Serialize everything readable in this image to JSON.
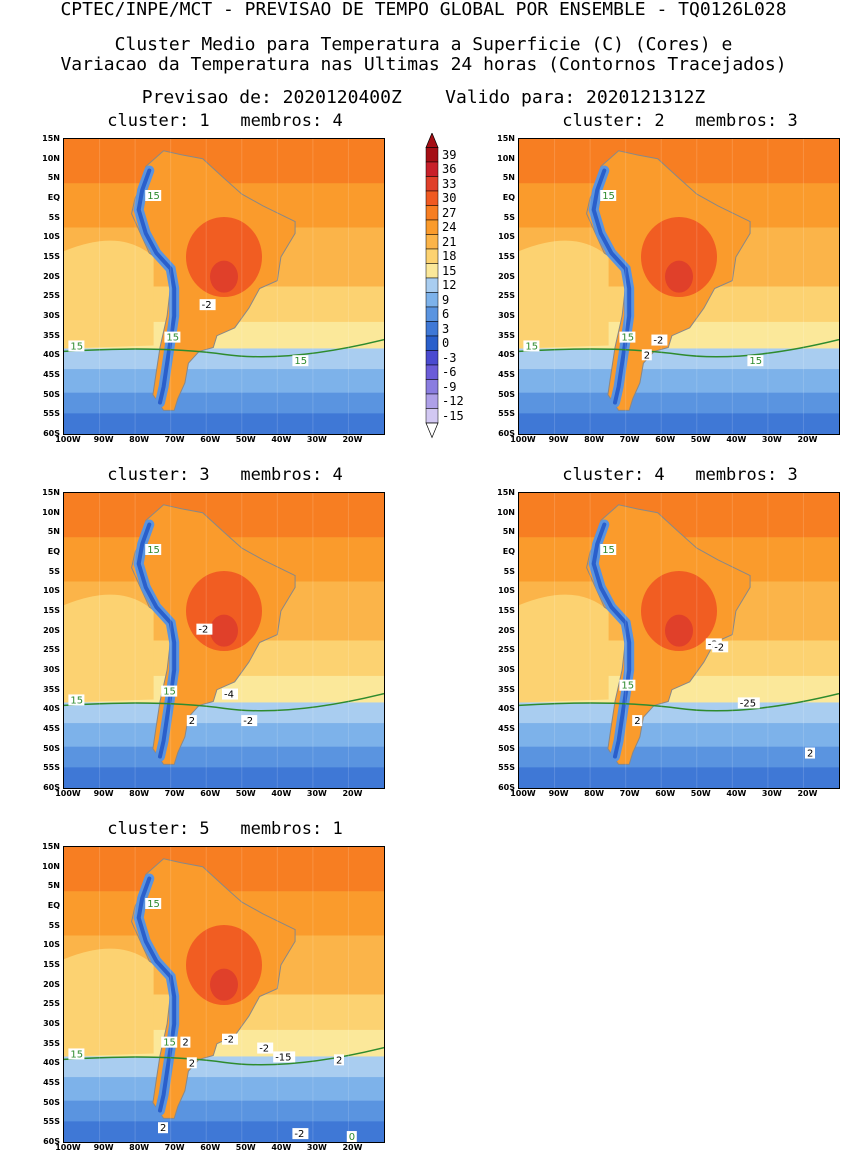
{
  "header": {
    "line1": "CPTEC/INPE/MCT - PREVISAO DE TEMPO GLOBAL POR ENSEMBLE - TQ0126L028",
    "line2": "Cluster Medio para Temperatura a Superficie (C) (Cores) e",
    "line3": "Variacao da Temperatura nas Ultimas 24 horas (Contornos Tracejados)",
    "line4": "Previsao de: 2020120400Z    Valido para: 2020121312Z"
  },
  "lat_labels": [
    "15N",
    "10N",
    "5N",
    "EQ",
    "5S",
    "10S",
    "15S",
    "20S",
    "25S",
    "30S",
    "35S",
    "40S",
    "45S",
    "50S",
    "55S",
    "60S"
  ],
  "lon_labels": [
    "100W",
    "90W",
    "80W",
    "70W",
    "60W",
    "50W",
    "40W",
    "30W",
    "20W"
  ],
  "colorbar": {
    "labels": [
      "39",
      "36",
      "33",
      "30",
      "27",
      "24",
      "21",
      "18",
      "15",
      "12",
      "9",
      "6",
      "3",
      "0",
      "-3",
      "-6",
      "-9",
      "-12",
      "-15"
    ],
    "colors": [
      "#a50f15",
      "#c8202a",
      "#e0402a",
      "#f05a22",
      "#f77e22",
      "#fa9b2c",
      "#fbb449",
      "#fcd271",
      "#fbe89a",
      "#a9cdf0",
      "#7db2ea",
      "#5a94e0",
      "#3f78d6",
      "#2a5fcb",
      "#4a4ad0",
      "#6b5cd8",
      "#8a7de0",
      "#aea0e8",
      "#d2c8f2"
    ]
  },
  "panels": [
    {
      "title": "cluster: 1   membros: 4",
      "labels": [
        "15",
        "15",
        "15",
        "15",
        "-2"
      ]
    },
    {
      "title": "cluster: 2   membros: 3",
      "labels": [
        "15",
        "15",
        "15",
        "15",
        "-2",
        "2"
      ]
    },
    {
      "title": "cluster: 3   membros: 4",
      "labels": [
        "15",
        "15",
        "15",
        "-2",
        "-4",
        "2",
        "-2"
      ]
    },
    {
      "title": "cluster: 4   membros: 3",
      "labels": [
        "15",
        "15",
        "-2",
        "-2",
        "2",
        "-25",
        "2"
      ]
    },
    {
      "title": "cluster: 5   membros: 1",
      "labels": [
        "15",
        "15",
        "15",
        "2",
        "-2",
        "-2",
        "-15",
        "2",
        "2",
        "2",
        "-2",
        "0"
      ]
    }
  ]
}
